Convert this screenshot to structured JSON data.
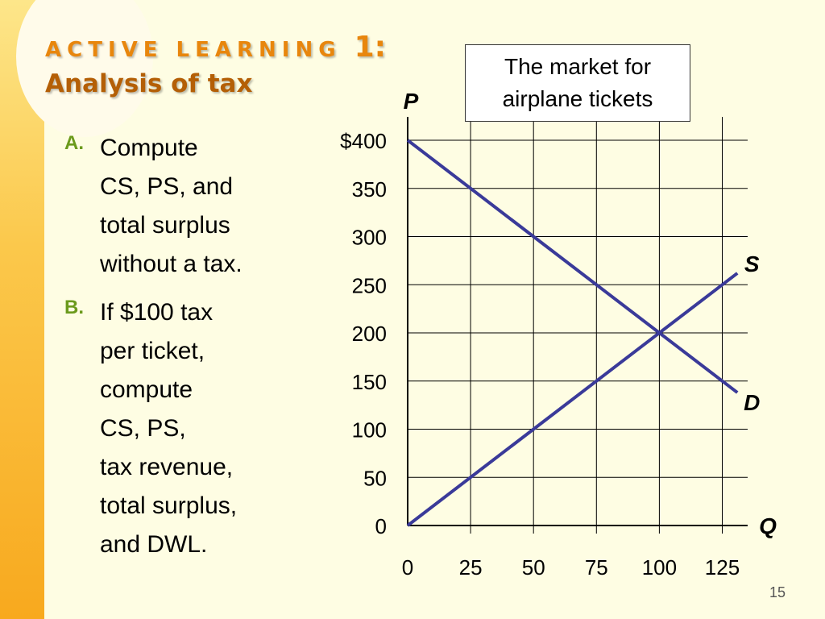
{
  "slide": {
    "title_prefix": "ACTIVE LEARNING",
    "title_number": "1:",
    "subtitle": "Analysis of tax",
    "page_number": "15",
    "questions": [
      {
        "letter": "A.",
        "lines": [
          "Compute",
          "CS, PS, and",
          "total surplus",
          "without a tax."
        ]
      },
      {
        "letter": "B.",
        "lines": [
          "If $100 tax",
          "per ticket,",
          "compute",
          "CS, PS,",
          "tax revenue,",
          "total surplus,",
          "and DWL."
        ]
      }
    ],
    "callout": [
      "The market for",
      "airplane tickets"
    ]
  },
  "chart_data": {
    "type": "line",
    "x_ticks": [
      0,
      25,
      50,
      75,
      100,
      125
    ],
    "y_ticks": [
      0,
      50,
      100,
      150,
      200,
      250,
      300,
      350,
      400
    ],
    "y_tick_labels": [
      "0",
      "50",
      "100",
      "150",
      "200",
      "250",
      "300",
      "350",
      "$400"
    ],
    "x_tick_labels": [
      "0",
      "25",
      "50",
      "75",
      "100",
      "125"
    ],
    "xlabel": "Q",
    "ylabel": "P",
    "xlim": [
      0,
      125
    ],
    "ylim": [
      0,
      400
    ],
    "grid": true,
    "series": [
      {
        "name": "S",
        "x": [
          0,
          131
        ],
        "y": [
          0,
          262
        ],
        "color": "#3a3a99"
      },
      {
        "name": "D",
        "x": [
          0,
          131
        ],
        "y": [
          400,
          138
        ],
        "color": "#3a3a99"
      }
    ]
  }
}
